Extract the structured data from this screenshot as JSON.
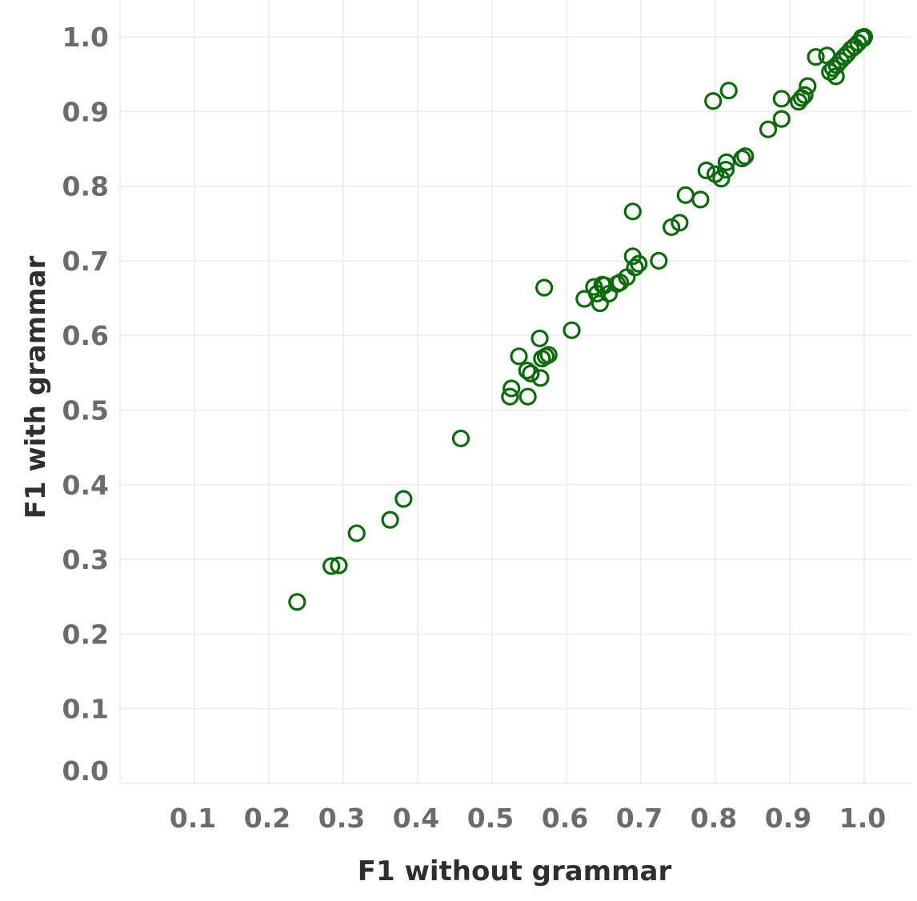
{
  "chart_data": {
    "type": "scatter",
    "xlabel": "F1 without grammar",
    "ylabel": "F1 with grammar",
    "xlim": [
      0.0,
      1.0
    ],
    "ylim": [
      0.0,
      1.0
    ],
    "x_ticks": [
      "0.1",
      "0.2",
      "0.3",
      "0.4",
      "0.5",
      "0.6",
      "0.7",
      "0.8",
      "0.9",
      "1.0"
    ],
    "y_ticks": [
      "0.0",
      "0.1",
      "0.2",
      "0.3",
      "0.4",
      "0.5",
      "0.6",
      "0.7",
      "0.8",
      "0.9",
      "1.0"
    ],
    "grid": true,
    "marker": "open-circle",
    "color": "#0a6b0a",
    "points": [
      [
        0.238,
        0.243
      ],
      [
        0.284,
        0.291
      ],
      [
        0.294,
        0.292
      ],
      [
        0.318,
        0.335
      ],
      [
        0.363,
        0.353
      ],
      [
        0.381,
        0.381
      ],
      [
        0.458,
        0.462
      ],
      [
        0.524,
        0.518
      ],
      [
        0.526,
        0.529
      ],
      [
        0.536,
        0.572
      ],
      [
        0.547,
        0.553
      ],
      [
        0.548,
        0.518
      ],
      [
        0.552,
        0.549
      ],
      [
        0.564,
        0.596
      ],
      [
        0.565,
        0.543
      ],
      [
        0.567,
        0.569
      ],
      [
        0.57,
        0.664
      ],
      [
        0.572,
        0.572
      ],
      [
        0.576,
        0.574
      ],
      [
        0.607,
        0.607
      ],
      [
        0.624,
        0.649
      ],
      [
        0.637,
        0.665
      ],
      [
        0.641,
        0.656
      ],
      [
        0.645,
        0.643
      ],
      [
        0.648,
        0.668
      ],
      [
        0.651,
        0.667
      ],
      [
        0.657,
        0.656
      ],
      [
        0.668,
        0.669
      ],
      [
        0.672,
        0.671
      ],
      [
        0.681,
        0.678
      ],
      [
        0.689,
        0.766
      ],
      [
        0.689,
        0.706
      ],
      [
        0.692,
        0.691
      ],
      [
        0.697,
        0.696
      ],
      [
        0.724,
        0.7
      ],
      [
        0.741,
        0.745
      ],
      [
        0.752,
        0.751
      ],
      [
        0.76,
        0.788
      ],
      [
        0.78,
        0.782
      ],
      [
        0.788,
        0.821
      ],
      [
        0.797,
        0.914
      ],
      [
        0.8,
        0.816
      ],
      [
        0.808,
        0.81
      ],
      [
        0.814,
        0.822
      ],
      [
        0.815,
        0.832
      ],
      [
        0.818,
        0.928
      ],
      [
        0.836,
        0.837
      ],
      [
        0.84,
        0.84
      ],
      [
        0.871,
        0.876
      ],
      [
        0.889,
        0.89
      ],
      [
        0.889,
        0.917
      ],
      [
        0.912,
        0.913
      ],
      [
        0.916,
        0.918
      ],
      [
        0.92,
        0.922
      ],
      [
        0.924,
        0.934
      ],
      [
        0.935,
        0.973
      ],
      [
        0.95,
        0.975
      ],
      [
        0.954,
        0.953
      ],
      [
        0.958,
        0.958
      ],
      [
        0.962,
        0.947
      ],
      [
        0.963,
        0.962
      ],
      [
        0.968,
        0.968
      ],
      [
        0.973,
        0.973
      ],
      [
        0.977,
        0.977
      ],
      [
        0.982,
        0.983
      ],
      [
        0.987,
        0.987
      ],
      [
        0.992,
        0.992
      ],
      [
        0.997,
        0.999
      ],
      [
        0.999,
        0.998
      ],
      [
        1.0,
        1.0
      ]
    ]
  }
}
